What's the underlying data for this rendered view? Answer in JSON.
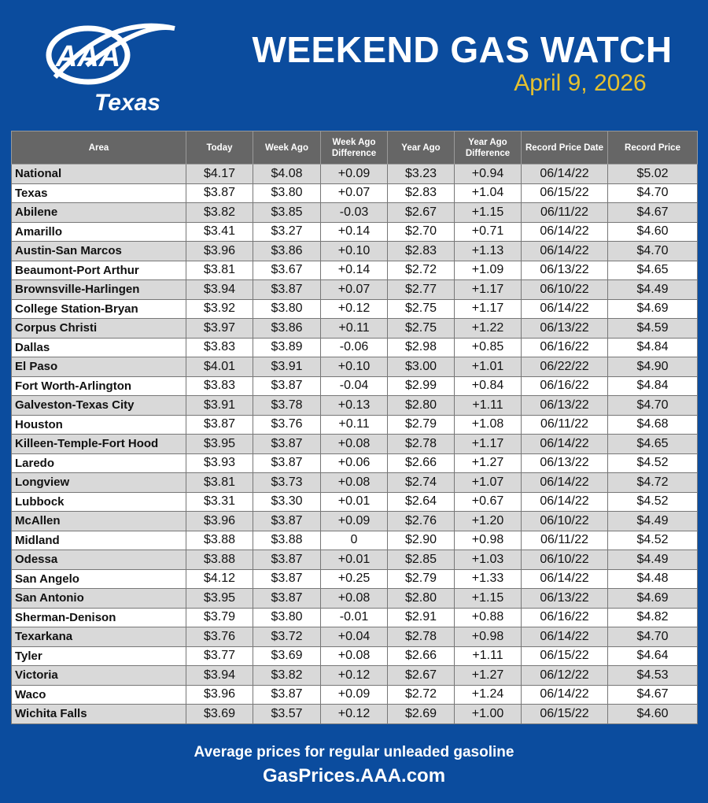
{
  "logo": {
    "text": "AAA",
    "region": "Texas"
  },
  "header": {
    "title": "WEEKEND GAS WATCH",
    "date": "April 9, 2026"
  },
  "table": {
    "columns": [
      "Area",
      "Today",
      "Week Ago",
      "Week Ago Difference",
      "Year Ago",
      "Year Ago Difference",
      "Record Price Date",
      "Record Price"
    ],
    "rows": [
      [
        "National",
        "$4.17",
        "$4.08",
        "+0.09",
        "$3.23",
        "+0.94",
        "06/14/22",
        "$5.02"
      ],
      [
        "Texas",
        "$3.87",
        "$3.80",
        "+0.07",
        "$2.83",
        "+1.04",
        "06/15/22",
        "$4.70"
      ],
      [
        "Abilene",
        "$3.82",
        "$3.85",
        "-0.03",
        "$2.67",
        "+1.15",
        "06/11/22",
        "$4.67"
      ],
      [
        "Amarillo",
        "$3.41",
        "$3.27",
        "+0.14",
        "$2.70",
        "+0.71",
        "06/14/22",
        "$4.60"
      ],
      [
        "Austin-San Marcos",
        "$3.96",
        "$3.86",
        "+0.10",
        "$2.83",
        "+1.13",
        "06/14/22",
        "$4.70"
      ],
      [
        "Beaumont-Port Arthur",
        "$3.81",
        "$3.67",
        "+0.14",
        "$2.72",
        "+1.09",
        "06/13/22",
        "$4.65"
      ],
      [
        "Brownsville-Harlingen",
        "$3.94",
        "$3.87",
        "+0.07",
        "$2.77",
        "+1.17",
        "06/10/22",
        "$4.49"
      ],
      [
        "College Station-Bryan",
        "$3.92",
        "$3.80",
        "+0.12",
        "$2.75",
        "+1.17",
        "06/14/22",
        "$4.69"
      ],
      [
        "Corpus Christi",
        "$3.97",
        "$3.86",
        "+0.11",
        "$2.75",
        "+1.22",
        "06/13/22",
        "$4.59"
      ],
      [
        "Dallas",
        "$3.83",
        "$3.89",
        "-0.06",
        "$2.98",
        "+0.85",
        "06/16/22",
        "$4.84"
      ],
      [
        "El Paso",
        "$4.01",
        "$3.91",
        "+0.10",
        "$3.00",
        "+1.01",
        "06/22/22",
        "$4.90"
      ],
      [
        "Fort Worth-Arlington",
        "$3.83",
        "$3.87",
        "-0.04",
        "$2.99",
        "+0.84",
        "06/16/22",
        "$4.84"
      ],
      [
        "Galveston-Texas City",
        "$3.91",
        "$3.78",
        "+0.13",
        "$2.80",
        "+1.11",
        "06/13/22",
        "$4.70"
      ],
      [
        "Houston",
        "$3.87",
        "$3.76",
        "+0.11",
        "$2.79",
        "+1.08",
        "06/11/22",
        "$4.68"
      ],
      [
        "Killeen-Temple-Fort Hood",
        "$3.95",
        "$3.87",
        "+0.08",
        "$2.78",
        "+1.17",
        "06/14/22",
        "$4.65"
      ],
      [
        "Laredo",
        "$3.93",
        "$3.87",
        "+0.06",
        "$2.66",
        "+1.27",
        "06/13/22",
        "$4.52"
      ],
      [
        "Longview",
        "$3.81",
        "$3.73",
        "+0.08",
        "$2.74",
        "+1.07",
        "06/14/22",
        "$4.72"
      ],
      [
        "Lubbock",
        "$3.31",
        "$3.30",
        "+0.01",
        "$2.64",
        "+0.67",
        "06/14/22",
        "$4.52"
      ],
      [
        "McAllen",
        "$3.96",
        "$3.87",
        "+0.09",
        "$2.76",
        "+1.20",
        "06/10/22",
        "$4.49"
      ],
      [
        "Midland",
        "$3.88",
        "$3.88",
        "0",
        "$2.90",
        "+0.98",
        "06/11/22",
        "$4.52"
      ],
      [
        "Odessa",
        "$3.88",
        "$3.87",
        "+0.01",
        "$2.85",
        "+1.03",
        "06/10/22",
        "$4.49"
      ],
      [
        "San Angelo",
        "$4.12",
        "$3.87",
        "+0.25",
        "$2.79",
        "+1.33",
        "06/14/22",
        "$4.48"
      ],
      [
        "San Antonio",
        "$3.95",
        "$3.87",
        "+0.08",
        "$2.80",
        "+1.15",
        "06/13/22",
        "$4.69"
      ],
      [
        "Sherman-Denison",
        "$3.79",
        "$3.80",
        "-0.01",
        "$2.91",
        "+0.88",
        "06/16/22",
        "$4.82"
      ],
      [
        "Texarkana",
        "$3.76",
        "$3.72",
        "+0.04",
        "$2.78",
        "+0.98",
        "06/14/22",
        "$4.70"
      ],
      [
        "Tyler",
        "$3.77",
        "$3.69",
        "+0.08",
        "$2.66",
        "+1.11",
        "06/15/22",
        "$4.64"
      ],
      [
        "Victoria",
        "$3.94",
        "$3.82",
        "+0.12",
        "$2.67",
        "+1.27",
        "06/12/22",
        "$4.53"
      ],
      [
        "Waco",
        "$3.96",
        "$3.87",
        "+0.09",
        "$2.72",
        "+1.24",
        "06/14/22",
        "$4.67"
      ],
      [
        "Wichita Falls",
        "$3.69",
        "$3.57",
        "+0.12",
        "$2.69",
        "+1.00",
        "06/15/22",
        "$4.60"
      ]
    ]
  },
  "footer": {
    "note": "Average prices for regular unleaded gasoline",
    "url": "GasPrices.AAA.com"
  }
}
